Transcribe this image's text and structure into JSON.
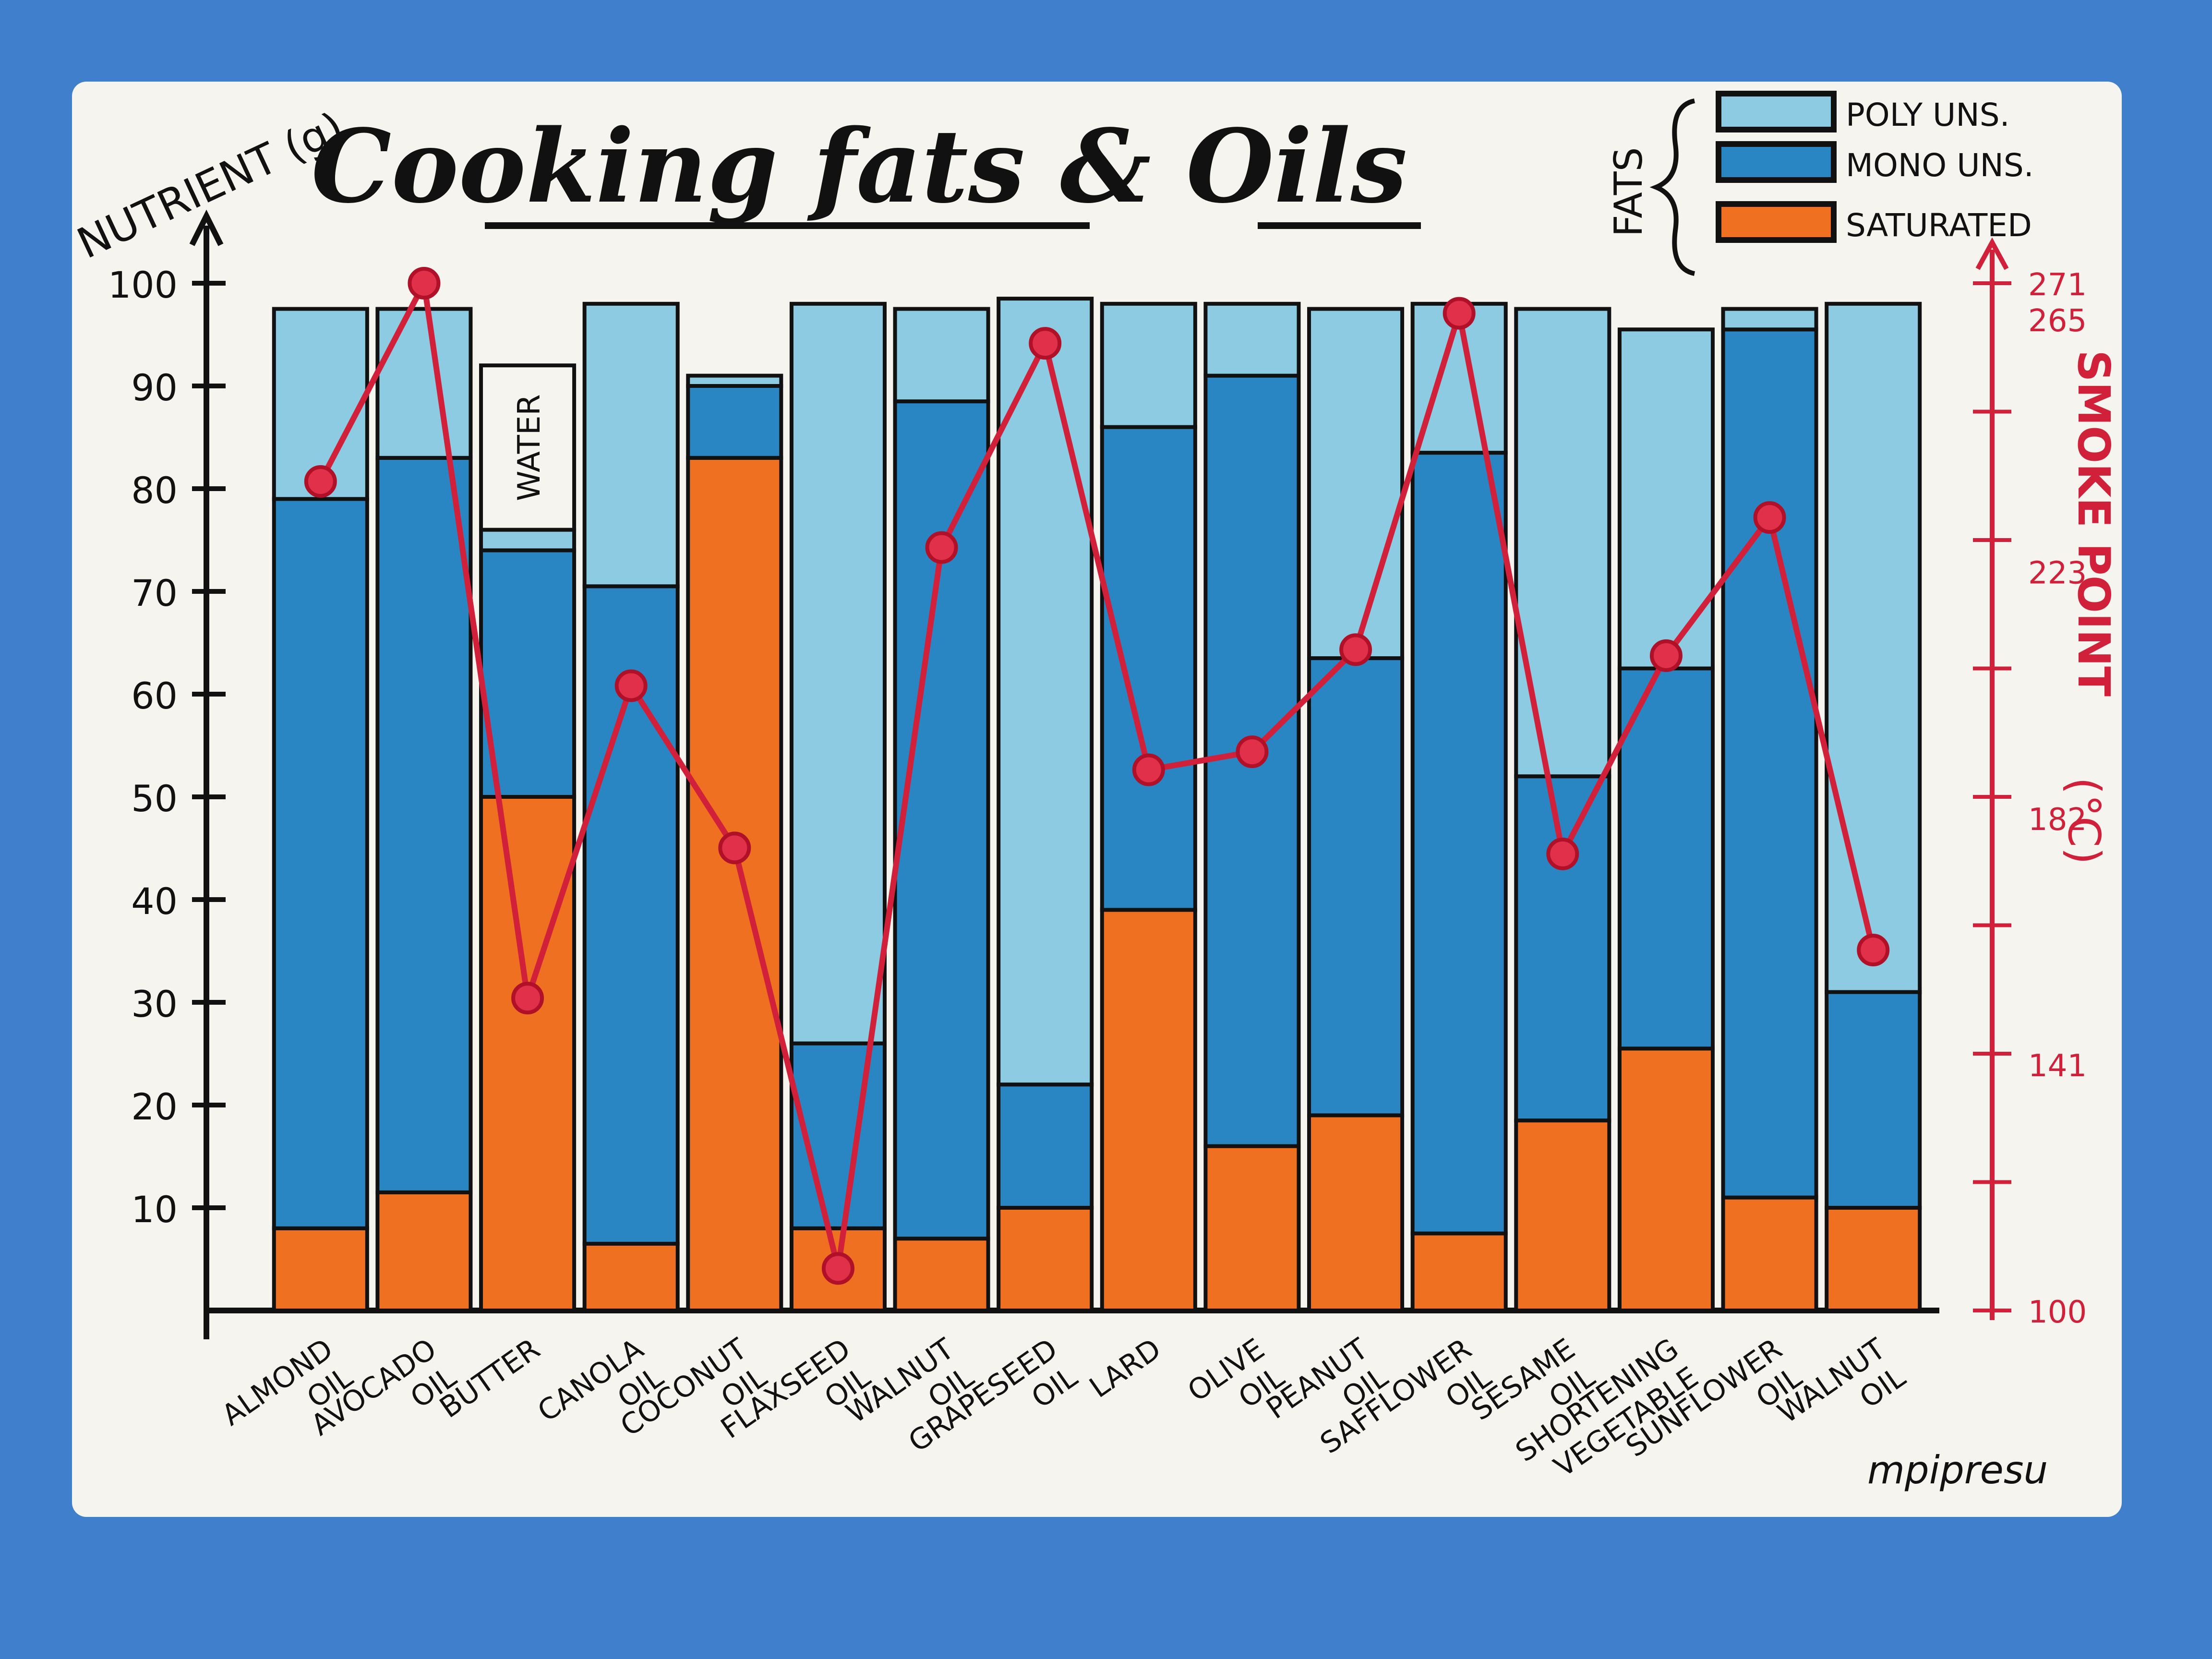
{
  "chart_data": {
    "type": "bar",
    "stacked": true,
    "title": "Cooking fats & Oils",
    "ylabel": "NUTRIENT (g)",
    "y2label": "SMOKE POINT (°C)",
    "y2_axis_label_lines": [
      "SMOKE POINT",
      "(°C)"
    ],
    "ylim": [
      0,
      100
    ],
    "y2lim": [
      100,
      271
    ],
    "yticks": [
      10,
      20,
      30,
      40,
      50,
      60,
      70,
      80,
      90,
      100
    ],
    "y2ticks": [
      100,
      141,
      182,
      223,
      265,
      271
    ],
    "legend_title": "FATS",
    "legend_position": "top-right",
    "categories": [
      [
        "ALMOND",
        "OIL"
      ],
      [
        "AVOCADO",
        "OIL"
      ],
      [
        "BUTTER"
      ],
      [
        "CANOLA",
        "OIL"
      ],
      [
        "COCONUT",
        "OIL"
      ],
      [
        "FLAXSEED",
        "OIL"
      ],
      [
        "WALNUT",
        "OIL"
      ],
      [
        "GRAPESEED",
        "OIL"
      ],
      [
        "LARD"
      ],
      [
        "OLIVE",
        "OIL"
      ],
      [
        "PEANUT",
        "OIL"
      ],
      [
        "SAFFLOWER",
        "OIL"
      ],
      [
        "SESAME",
        "OIL"
      ],
      [
        "SHORTENING",
        "VEGETABLE"
      ],
      [
        "SUNFLOWER",
        "OIL"
      ],
      [
        "WALNUT",
        "OIL"
      ]
    ],
    "series": [
      {
        "name": "SATURATED",
        "color": "#ee7020",
        "values": [
          8,
          11.5,
          50,
          6.5,
          83,
          8,
          7,
          10,
          39,
          16,
          19,
          7.5,
          18.5,
          25.5,
          11,
          10
        ]
      },
      {
        "name": "MONO UNS.",
        "color": "#2a86c2",
        "values": [
          71,
          71.5,
          24,
          64,
          7,
          18,
          81.5,
          12,
          47,
          75,
          44.5,
          76,
          33.5,
          37,
          84.5,
          21
        ]
      },
      {
        "name": "POLY UNS.",
        "color": "#8ccbe2",
        "values": [
          18.5,
          14.5,
          2,
          27.5,
          1,
          72,
          9,
          76.5,
          12,
          7,
          34,
          14.5,
          45.5,
          33,
          2,
          67
        ]
      }
    ],
    "water": {
      "category": "BUTTER",
      "label": "WATER",
      "value": 16
    },
    "smoke_point": {
      "name": "SMOKE POINT",
      "color": "#d0203a",
      "values": [
        238,
        271,
        152,
        204,
        177,
        107,
        227,
        261,
        190,
        193,
        210,
        266,
        176,
        209,
        232,
        160
      ]
    },
    "signature": "mpipresu"
  }
}
